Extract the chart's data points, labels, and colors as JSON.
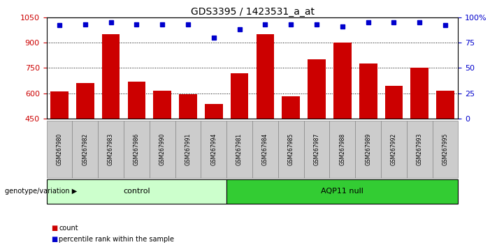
{
  "title": "GDS3395 / 1423531_a_at",
  "samples": [
    "GSM267980",
    "GSM267982",
    "GSM267983",
    "GSM267986",
    "GSM267990",
    "GSM267991",
    "GSM267994",
    "GSM267981",
    "GSM267984",
    "GSM267985",
    "GSM267987",
    "GSM267988",
    "GSM267989",
    "GSM267992",
    "GSM267993",
    "GSM267995"
  ],
  "counts": [
    610,
    660,
    950,
    670,
    615,
    595,
    535,
    720,
    950,
    580,
    800,
    900,
    775,
    645,
    750,
    615
  ],
  "percentile_ranks": [
    92,
    93,
    95,
    93,
    93,
    93,
    80,
    88,
    93,
    93,
    93,
    91,
    95,
    95,
    95,
    92
  ],
  "control_count": 7,
  "aqp11_count": 9,
  "ylim_left": [
    450,
    1050
  ],
  "ylim_right": [
    0,
    100
  ],
  "yticks_left": [
    450,
    600,
    750,
    900,
    1050
  ],
  "yticks_right": [
    0,
    25,
    50,
    75,
    100
  ],
  "bar_color": "#cc0000",
  "dot_color": "#0000cc",
  "control_bg": "#ccffcc",
  "aqp11_bg": "#33cc33",
  "sample_bg": "#cccccc",
  "legend_count_color": "#cc0000",
  "legend_pct_color": "#0000cc",
  "gridline_values": [
    600,
    750,
    900
  ],
  "fig_width": 7.01,
  "fig_height": 3.54
}
